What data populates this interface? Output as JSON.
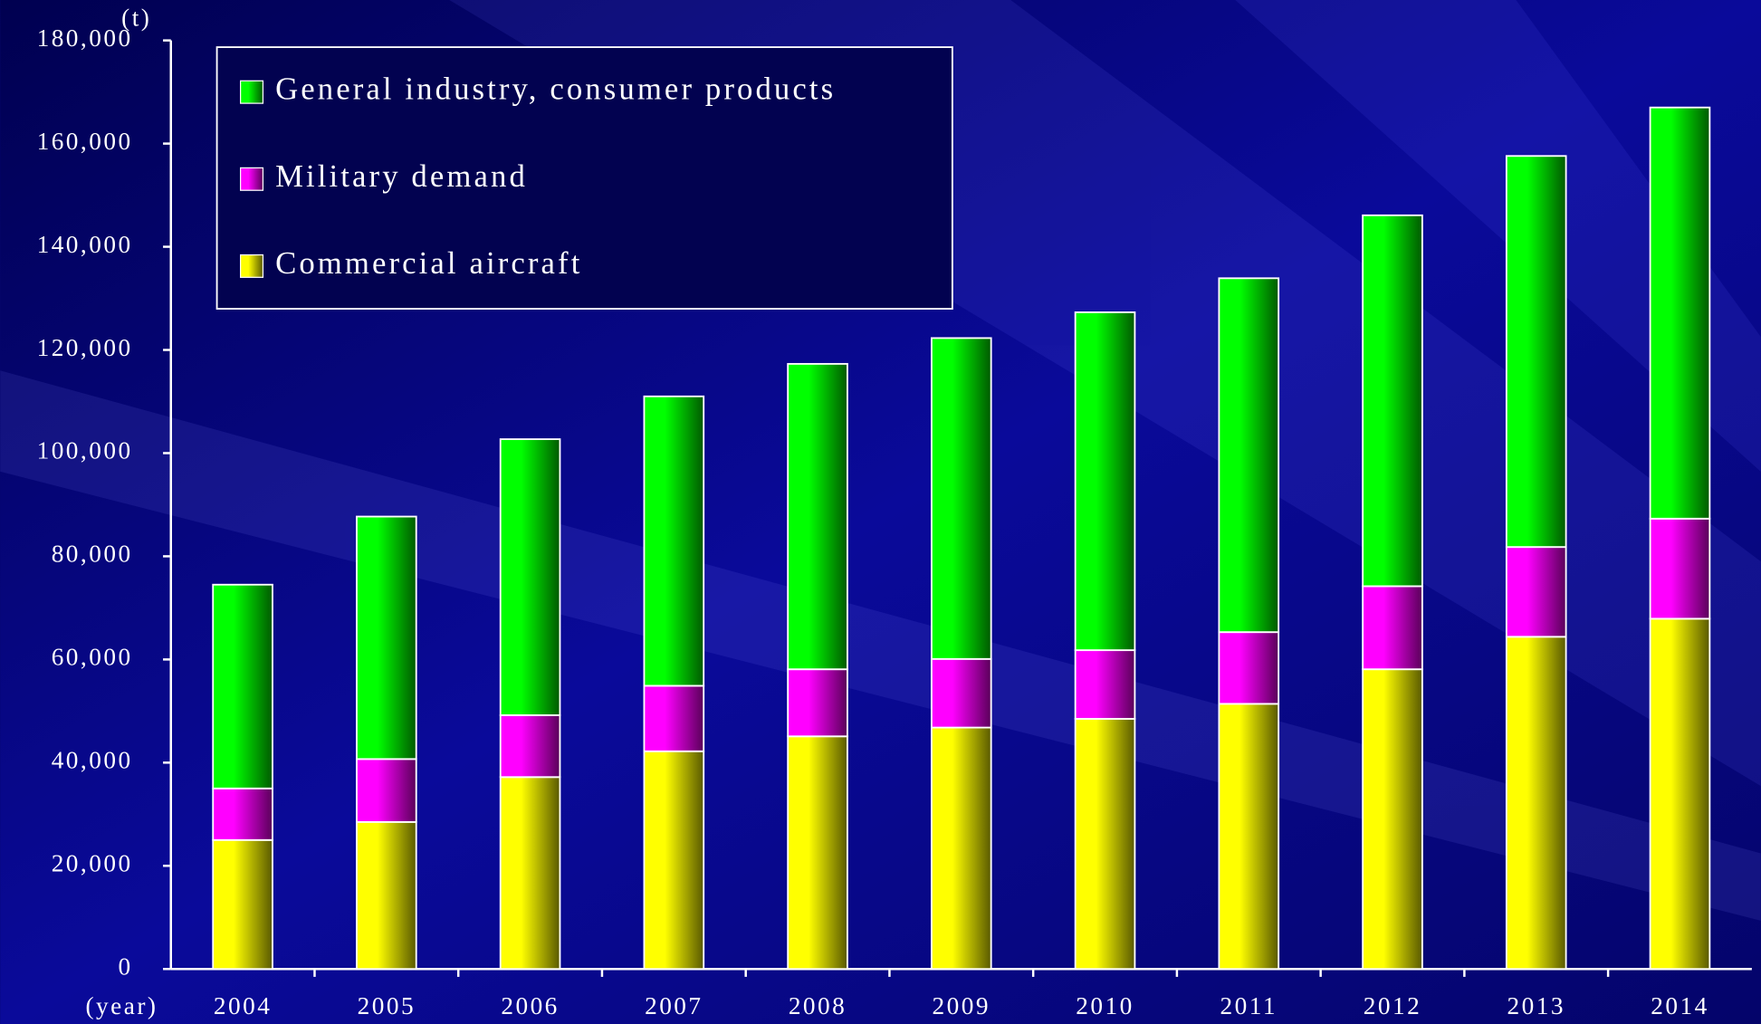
{
  "chart_data": {
    "type": "bar",
    "stacked": true,
    "y_unit": "(t)",
    "x_unit": "(year)",
    "categories": [
      "2004",
      "2005",
      "2006",
      "2007",
      "2008",
      "2009",
      "2010",
      "2011",
      "2012",
      "2013",
      "2014"
    ],
    "series": [
      {
        "name": "Commercial aircraft",
        "color": "#ffff00",
        "values": [
          25000,
          28500,
          37200,
          42200,
          45100,
          46800,
          48500,
          51400,
          58100,
          64400,
          67900
        ]
      },
      {
        "name": "Military demand",
        "color": "#ff00ff",
        "values": [
          10000,
          12200,
          12000,
          12700,
          13000,
          13300,
          13300,
          13900,
          16100,
          17400,
          19400
        ]
      },
      {
        "name": "General industry, consumer products",
        "color": "#00ff00",
        "values": [
          39500,
          47000,
          53500,
          56100,
          59200,
          62200,
          65500,
          68600,
          71900,
          75800,
          79700
        ]
      }
    ],
    "ylim": [
      0,
      180000
    ],
    "yticks": [
      0,
      {
        "value": 20000,
        "label": "20,000"
      },
      {
        "value": 40000,
        "label": "40,000"
      },
      {
        "value": 60000,
        "label": "60,000"
      },
      {
        "value": 80000,
        "label": "80,000"
      },
      {
        "value": 100000,
        "label": "100,000"
      },
      {
        "value": 120000,
        "label": "120,000"
      },
      {
        "value": 140000,
        "label": "140,000"
      },
      {
        "value": 160000,
        "label": "160,000"
      },
      {
        "value": 180000,
        "label": "180,000"
      }
    ],
    "legend": "top-left"
  }
}
